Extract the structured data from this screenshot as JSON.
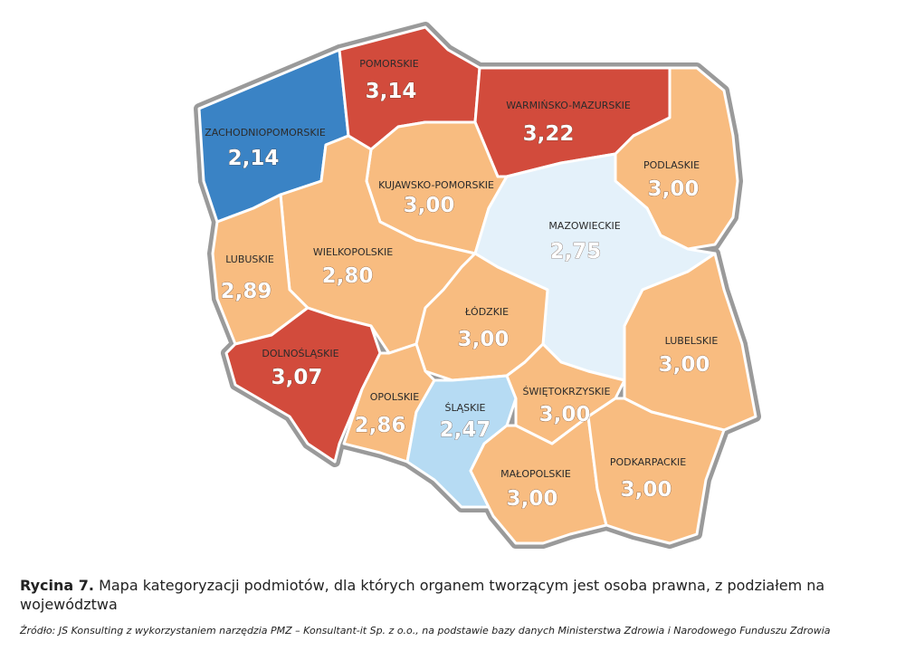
{
  "map": {
    "regions": [
      {
        "name": "ZACHODNIOPOMORSKIE",
        "value": "2,14",
        "color": "#3a83c5"
      },
      {
        "name": "POMORSKIE",
        "value": "3,14",
        "color": "#d24b3c"
      },
      {
        "name": "WARMIŃSKO-MAZURSKIE",
        "value": "3,22",
        "color": "#d24b3c"
      },
      {
        "name": "PODLASKIE",
        "value": "3,00",
        "color": "#f8bc80"
      },
      {
        "name": "KUJAWSKO-POMORSKIE",
        "value": "3,00",
        "color": "#f8bc80"
      },
      {
        "name": "MAZOWIECKIE",
        "value": "2,75",
        "color": "#e4f1fa"
      },
      {
        "name": "WIELKOPOLSKIE",
        "value": "2,80",
        "color": "#f8bc80"
      },
      {
        "name": "LUBUSKIE",
        "value": "2,89",
        "color": "#f8bc80"
      },
      {
        "name": "DOLNOŚLĄSKIE",
        "value": "3,07",
        "color": "#d24b3c"
      },
      {
        "name": "ŁÓDZKIE",
        "value": "3,00",
        "color": "#f8bc80"
      },
      {
        "name": "OPOLSKIE",
        "value": "2,86",
        "color": "#f8bc80"
      },
      {
        "name": "ŚLĄSKIE",
        "value": "2,47",
        "color": "#b6dbf3"
      },
      {
        "name": "ŚWIĘTOKRZYSKIE",
        "value": "3,00",
        "color": "#f8bc80"
      },
      {
        "name": "LUBELSKIE",
        "value": "3,00",
        "color": "#f8bc80"
      },
      {
        "name": "MAŁOPOLSKIE",
        "value": "3,00",
        "color": "#f8bc80"
      },
      {
        "name": "PODKARPACKIE",
        "value": "3,00",
        "color": "#f8bc80"
      }
    ]
  },
  "caption": {
    "label": "Rycina 7.",
    "text": "Mapa kategoryzacji podmiotów, dla których organem tworzącym jest osoba prawna, z podziałem na województwa",
    "source": "Źródło: JS Konsulting z wykorzystaniem narzędzia PMZ – Konsultant-it Sp. z o.o., na podstawie bazy danych Ministerstwa Zdrowia i Narodowego Funduszu Zdrowia"
  }
}
